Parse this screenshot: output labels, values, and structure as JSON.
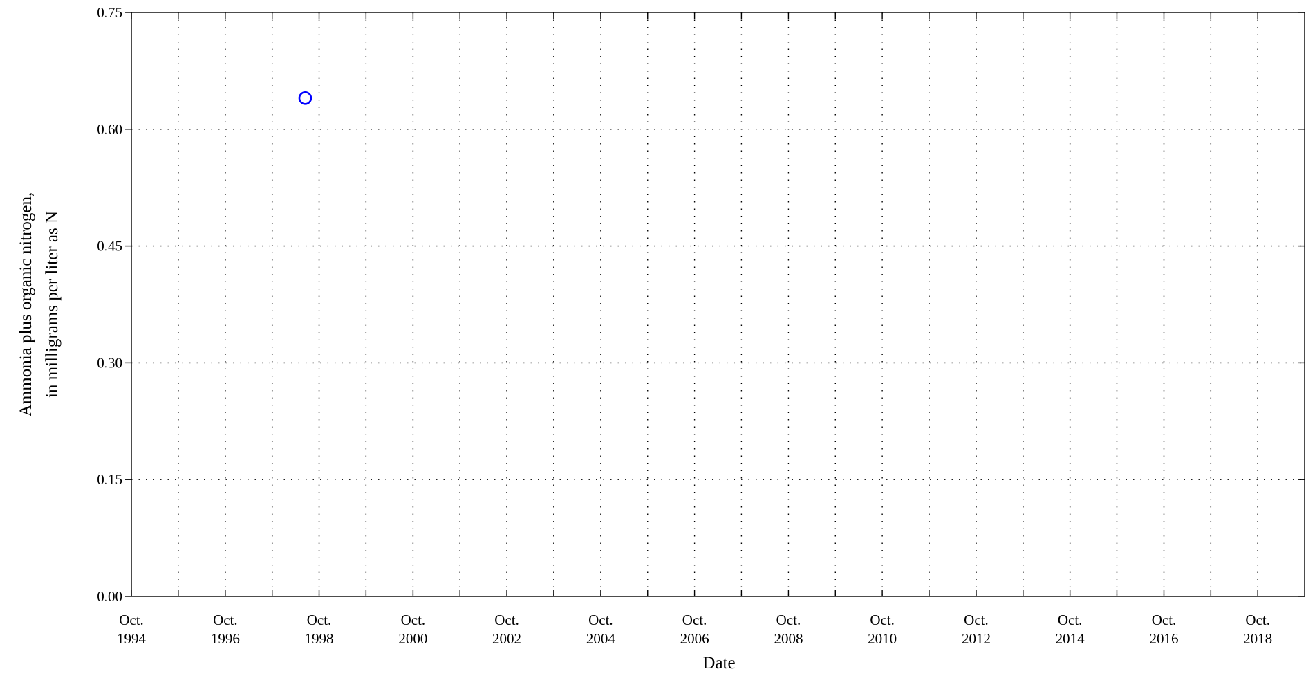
{
  "chart_data": {
    "type": "scatter",
    "xlabel": "Date",
    "ylabel_lines": [
      "Ammonia plus organic nitrogen,",
      "in milligrams per liter as N"
    ],
    "xlim": [
      "1994-10-01",
      "2019-10-01"
    ],
    "ylim": [
      0,
      0.75
    ],
    "yticks": [
      {
        "value": 0.0,
        "label": "0.00"
      },
      {
        "value": 0.15,
        "label": "0.15"
      },
      {
        "value": 0.3,
        "label": "0.30"
      },
      {
        "value": 0.45,
        "label": "0.45"
      },
      {
        "value": 0.6,
        "label": "0.60"
      },
      {
        "value": 0.75,
        "label": "0.75"
      }
    ],
    "xticks_major": [
      {
        "date": "1994-10-01",
        "month": "Oct.",
        "year": "1994"
      },
      {
        "date": "1996-10-01",
        "month": "Oct.",
        "year": "1996"
      },
      {
        "date": "1998-10-01",
        "month": "Oct.",
        "year": "1998"
      },
      {
        "date": "2000-10-01",
        "month": "Oct.",
        "year": "2000"
      },
      {
        "date": "2002-10-01",
        "month": "Oct.",
        "year": "2002"
      },
      {
        "date": "2004-10-01",
        "month": "Oct.",
        "year": "2004"
      },
      {
        "date": "2006-10-01",
        "month": "Oct.",
        "year": "2006"
      },
      {
        "date": "2008-10-01",
        "month": "Oct.",
        "year": "2008"
      },
      {
        "date": "2010-10-01",
        "month": "Oct.",
        "year": "2010"
      },
      {
        "date": "2012-10-01",
        "month": "Oct.",
        "year": "2012"
      },
      {
        "date": "2014-10-01",
        "month": "Oct.",
        "year": "2014"
      },
      {
        "date": "2016-10-01",
        "month": "Oct.",
        "year": "2016"
      },
      {
        "date": "2018-10-01",
        "month": "Oct.",
        "year": "2018"
      }
    ],
    "xticks_minor": [
      "1995-10-01",
      "1997-10-01",
      "1999-10-01",
      "2001-10-01",
      "2003-10-01",
      "2005-10-01",
      "2007-10-01",
      "2009-10-01",
      "2011-10-01",
      "2013-10-01",
      "2015-10-01",
      "2017-10-01"
    ],
    "grid": true,
    "legend": "none",
    "series": [
      {
        "marker": "open-circle",
        "color": "#0000ff",
        "points": [
          {
            "x": "1998-06-15",
            "y": 0.64
          }
        ]
      }
    ]
  }
}
